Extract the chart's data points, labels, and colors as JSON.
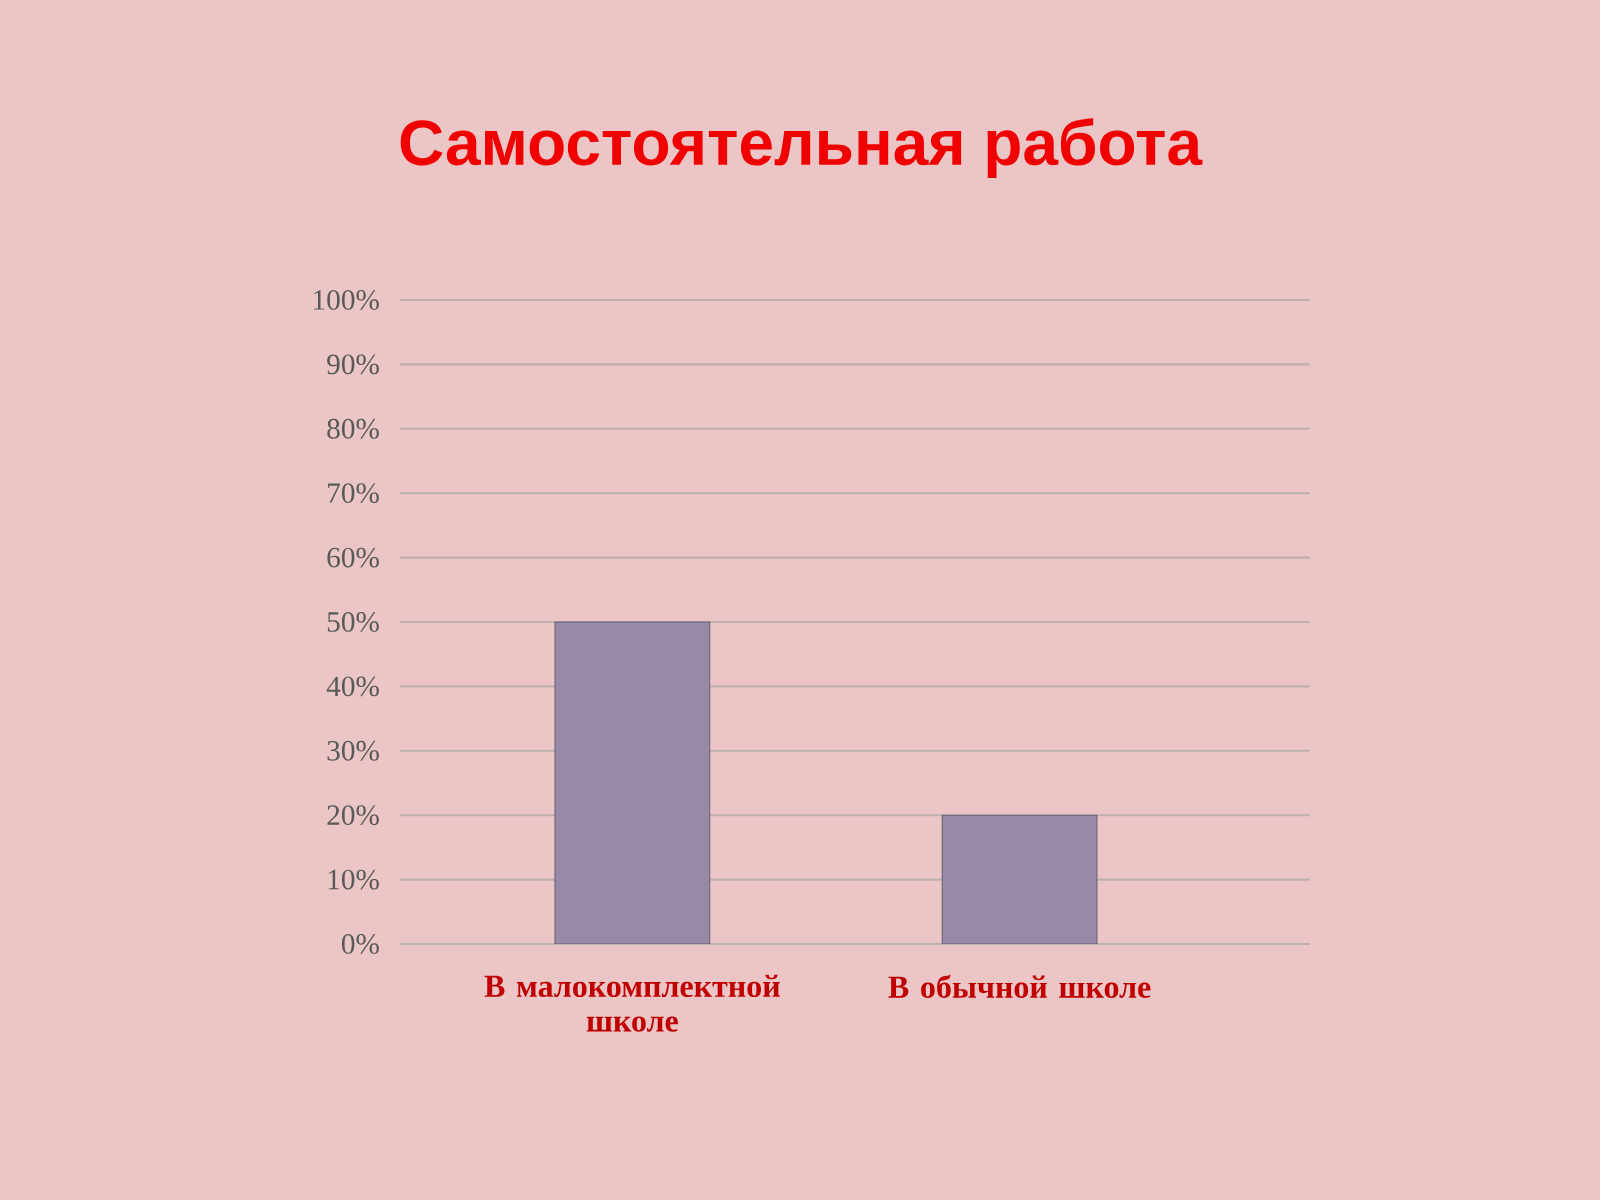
{
  "chart_data": {
    "type": "bar",
    "title": "Самостоятельная работа",
    "categories": [
      "В малокомплектной школе",
      "В обычной школе"
    ],
    "values": [
      50,
      20
    ],
    "color": "#968aa6",
    "ylim": [
      0,
      100
    ],
    "yticks": [
      {
        "value": 0,
        "label": "0%"
      },
      {
        "value": 10,
        "label": "10%"
      },
      {
        "value": 20,
        "label": "20%"
      },
      {
        "value": 30,
        "label": "30%"
      },
      {
        "value": 40,
        "label": "40%"
      },
      {
        "value": 50,
        "label": "50%"
      },
      {
        "value": 60,
        "label": "60%"
      },
      {
        "value": 70,
        "label": "70%"
      },
      {
        "value": 80,
        "label": "80%"
      },
      {
        "value": 90,
        "label": "90%"
      },
      {
        "value": 100,
        "label": "100%"
      }
    ],
    "grid": "y"
  }
}
